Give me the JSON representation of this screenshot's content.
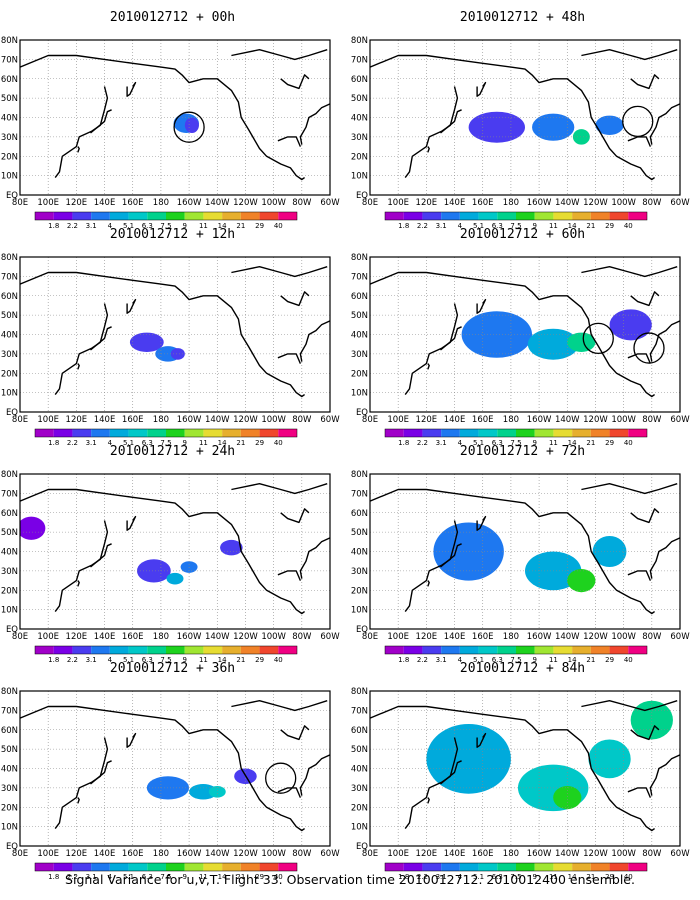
{
  "footer": "Signal Variance for u,v,T. Flight 33. Observation time 2010012712. 2010012400 ensemble.",
  "scale": {
    "labels": [
      "1.8",
      "2.2",
      "3.1",
      "4",
      "5.1",
      "6.3",
      "7.5",
      "9",
      "11",
      "14",
      "21",
      "29",
      "40"
    ],
    "colors": [
      "#a000c8",
      "#7a00e6",
      "#4a3cf0",
      "#1e78f0",
      "#00aadc",
      "#00c8c8",
      "#00d28c",
      "#1ed21e",
      "#a0e632",
      "#e6dc32",
      "#e6af2d",
      "#f08228",
      "#f0462d",
      "#f00082"
    ]
  },
  "xticks": [
    "80E",
    "100E",
    "120E",
    "140E",
    "160E",
    "180",
    "160W",
    "140W",
    "120W",
    "100W",
    "80W",
    "60W"
  ],
  "yticks": [
    "EQ",
    "10N",
    "20N",
    "30N",
    "40N",
    "50N",
    "60N",
    "70N",
    "80N"
  ],
  "chart_data": [
    {
      "type": "heatmap",
      "title": "2010012712 + 00h",
      "circles": [
        {
          "lon": -160,
          "lat": 35
        }
      ]
    },
    {
      "type": "heatmap",
      "title": "2010012712 + 12h",
      "circles": []
    },
    {
      "type": "heatmap",
      "title": "2010012712 + 24h",
      "circles": []
    },
    {
      "type": "heatmap",
      "title": "2010012712 + 36h",
      "circles": [
        {
          "lon": -95,
          "lat": 35
        }
      ]
    },
    {
      "type": "heatmap",
      "title": "2010012712 + 48h",
      "circles": [
        {
          "lon": -90,
          "lat": 38
        }
      ]
    },
    {
      "type": "heatmap",
      "title": "2010012712 + 60h",
      "circles": [
        {
          "lon": -118,
          "lat": 38
        },
        {
          "lon": -82,
          "lat": 33
        }
      ]
    },
    {
      "type": "heatmap",
      "title": "2010012712 + 72h",
      "circles": []
    },
    {
      "type": "heatmap",
      "title": "2010012712 + 84h",
      "circles": []
    }
  ]
}
